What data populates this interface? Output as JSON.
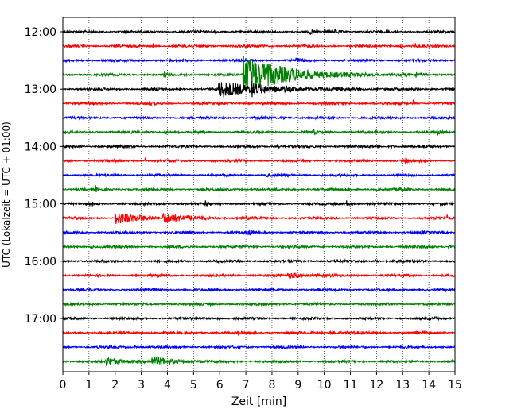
{
  "chart_data": {
    "type": "line",
    "xlabel": "Zeit  [min]",
    "ylabel": "UTC (Lokalzeit = UTC + 01:00)",
    "xlim": [
      0,
      15
    ],
    "xticks": [
      0,
      1,
      2,
      3,
      4,
      5,
      6,
      7,
      8,
      9,
      10,
      11,
      12,
      13,
      14,
      15
    ],
    "xtick_labels": [
      "0",
      "1",
      "2",
      "3",
      "4",
      "5",
      "6",
      "7",
      "8",
      "9",
      "10",
      "11",
      "12",
      "13",
      "14",
      "15"
    ],
    "yticks": [
      {
        "label": "12:00",
        "trace_index": 0
      },
      {
        "label": "13:00",
        "trace_index": 4
      },
      {
        "label": "14:00",
        "trace_index": 8
      },
      {
        "label": "15:00",
        "trace_index": 12
      },
      {
        "label": "16:00",
        "trace_index": 16
      },
      {
        "label": "17:00",
        "trace_index": 20
      }
    ],
    "grid": "vertical dotted",
    "trace_colors": [
      "#000000",
      "#ff0000",
      "#0000ff",
      "#008000"
    ],
    "traces": [
      {
        "start": "12:00",
        "color": "#000000",
        "events": [
          {
            "x": 5.8,
            "amp": 0.3,
            "dur": 0.1
          },
          {
            "x": 9.45,
            "amp": 0.6,
            "dur": 0.08
          },
          {
            "x": 10.4,
            "amp": 0.3,
            "dur": 0.3
          }
        ]
      },
      {
        "start": "12:15",
        "color": "#ff0000",
        "events": [
          {
            "x": 3.45,
            "amp": 0.4,
            "dur": 0.05
          },
          {
            "x": 12.9,
            "amp": 0.3,
            "dur": 0.1
          },
          {
            "x": 13.45,
            "amp": 0.6,
            "dur": 0.08
          }
        ]
      },
      {
        "start": "12:30",
        "color": "#0000ff",
        "events": [
          {
            "x": 8.9,
            "amp": 0.45,
            "dur": 0.2
          }
        ]
      },
      {
        "start": "12:45",
        "color": "#008000",
        "events": [
          {
            "x": 3.85,
            "amp": 0.5,
            "dur": 0.15
          },
          {
            "x": 6.9,
            "amp": 2.9,
            "dur": 2.3
          },
          {
            "x": 13.5,
            "amp": 0.4,
            "dur": 0.1
          }
        ]
      },
      {
        "start": "13:00",
        "color": "#000000",
        "events": [
          {
            "x": 5.95,
            "amp": 1.0,
            "dur": 2.8
          },
          {
            "x": 7.2,
            "amp": 0.8,
            "dur": 0.4
          }
        ]
      },
      {
        "start": "13:15",
        "color": "#ff0000",
        "events": [
          {
            "x": 3.3,
            "amp": 0.3,
            "dur": 0.1
          },
          {
            "x": 10.3,
            "amp": 0.3,
            "dur": 0.1
          },
          {
            "x": 13.4,
            "amp": 0.5,
            "dur": 0.08
          }
        ]
      },
      {
        "start": "13:30",
        "color": "#0000ff",
        "events": [
          {
            "x": 8.4,
            "amp": 0.35,
            "dur": 0.1
          }
        ]
      },
      {
        "start": "13:45",
        "color": "#008000",
        "events": [
          {
            "x": 3.85,
            "amp": 0.35,
            "dur": 0.2
          },
          {
            "x": 9.6,
            "amp": 0.3,
            "dur": 0.1
          },
          {
            "x": 14.3,
            "amp": 0.3,
            "dur": 0.15
          }
        ]
      },
      {
        "start": "14:00",
        "color": "#000000",
        "events": [
          {
            "x": 8.2,
            "amp": 0.5,
            "dur": 0.08
          },
          {
            "x": 12.55,
            "amp": 0.3,
            "dur": 0.1
          }
        ]
      },
      {
        "start": "14:15",
        "color": "#ff0000",
        "events": [
          {
            "x": 2.2,
            "amp": 0.3,
            "dur": 0.05
          },
          {
            "x": 3.15,
            "amp": 0.4,
            "dur": 0.05
          },
          {
            "x": 13.1,
            "amp": 0.5,
            "dur": 0.1
          }
        ]
      },
      {
        "start": "14:30",
        "color": "#0000ff",
        "events": [
          {
            "x": 7.8,
            "amp": 0.3,
            "dur": 0.1
          },
          {
            "x": 9.9,
            "amp": 0.3,
            "dur": 0.05
          }
        ]
      },
      {
        "start": "14:45",
        "color": "#008000",
        "events": [
          {
            "x": 1.25,
            "amp": 0.45,
            "dur": 0.1
          },
          {
            "x": 7.7,
            "amp": 0.25,
            "dur": 0.05
          },
          {
            "x": 12.9,
            "amp": 0.3,
            "dur": 0.2
          }
        ]
      },
      {
        "start": "15:00",
        "color": "#000000",
        "events": [
          {
            "x": 1.1,
            "amp": 0.3,
            "dur": 0.1
          },
          {
            "x": 5.45,
            "amp": 0.45,
            "dur": 0.1
          },
          {
            "x": 10.85,
            "amp": 0.45,
            "dur": 0.15
          }
        ]
      },
      {
        "start": "15:15",
        "color": "#ff0000",
        "events": [
          {
            "x": 2.0,
            "amp": 0.8,
            "dur": 1.3
          },
          {
            "x": 3.8,
            "amp": 0.7,
            "dur": 1.2
          },
          {
            "x": 7.0,
            "amp": 0.25,
            "dur": 0.1
          },
          {
            "x": 14.7,
            "amp": 0.4,
            "dur": 0.1
          }
        ]
      },
      {
        "start": "15:30",
        "color": "#0000ff",
        "events": [
          {
            "x": 7.05,
            "amp": 0.55,
            "dur": 0.2
          },
          {
            "x": 13.7,
            "amp": 0.3,
            "dur": 0.1
          }
        ]
      },
      {
        "start": "15:45",
        "color": "#008000",
        "events": [
          {
            "x": 1.05,
            "amp": 0.3,
            "dur": 0.1
          },
          {
            "x": 14.75,
            "amp": 0.55,
            "dur": 0.08
          }
        ]
      },
      {
        "start": "16:00",
        "color": "#000000",
        "events": [
          {
            "x": 11.95,
            "amp": 0.35,
            "dur": 0.08
          }
        ]
      },
      {
        "start": "16:15",
        "color": "#ff0000",
        "events": [
          {
            "x": 8.6,
            "amp": 0.35,
            "dur": 1.2
          }
        ]
      },
      {
        "start": "16:30",
        "color": "#0000ff",
        "events": [
          {
            "x": 12.45,
            "amp": 0.35,
            "dur": 0.05
          }
        ]
      },
      {
        "start": "16:45",
        "color": "#008000",
        "events": []
      },
      {
        "start": "17:00",
        "color": "#000000",
        "events": [
          {
            "x": 5.9,
            "amp": 0.2,
            "dur": 0.1
          }
        ]
      },
      {
        "start": "17:15",
        "color": "#ff0000",
        "events": [
          {
            "x": 6.7,
            "amp": 0.45,
            "dur": 0.08
          },
          {
            "x": 10.2,
            "amp": 0.2,
            "dur": 0.8
          }
        ]
      },
      {
        "start": "17:30",
        "color": "#0000ff",
        "events": [
          {
            "x": 2.75,
            "amp": 0.25,
            "dur": 0.05
          }
        ]
      },
      {
        "start": "17:45",
        "color": "#008000",
        "events": [
          {
            "x": 1.6,
            "amp": 0.5,
            "dur": 1.2
          },
          {
            "x": 3.4,
            "amp": 0.5,
            "dur": 1.3
          }
        ]
      }
    ]
  }
}
